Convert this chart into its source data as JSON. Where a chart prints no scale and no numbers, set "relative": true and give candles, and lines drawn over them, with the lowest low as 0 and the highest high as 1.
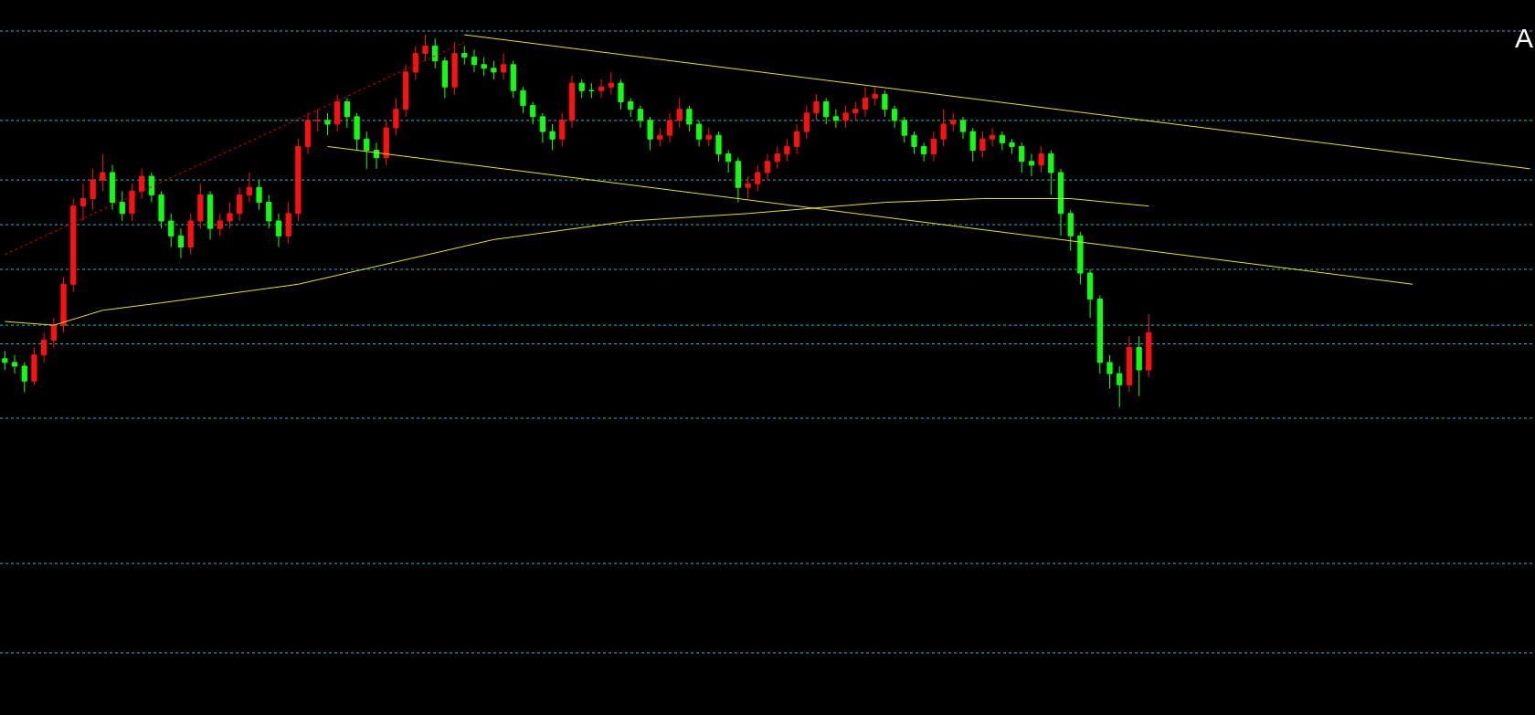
{
  "chart_data": {
    "type": "candlestick",
    "relative": true,
    "annotations": [
      "A"
    ],
    "categories": [
      null,
      null,
      null,
      null,
      null,
      null,
      null,
      null,
      null,
      null,
      null,
      null,
      null,
      null,
      null,
      null,
      null,
      null,
      null,
      null,
      null,
      null,
      null,
      null,
      null,
      null,
      null,
      null,
      null,
      null,
      null,
      null,
      null,
      null,
      null,
      null,
      null,
      null,
      null,
      null,
      null,
      null,
      null,
      null,
      null,
      null,
      null,
      null,
      null,
      null,
      null,
      null,
      null,
      null,
      null,
      null,
      null,
      null,
      null,
      null,
      null,
      null,
      null,
      null,
      null,
      null,
      null,
      null,
      null,
      null,
      null,
      null,
      null,
      null,
      null,
      null,
      null,
      null,
      null,
      null,
      null,
      null,
      null,
      null,
      null,
      null,
      null,
      null,
      null,
      null,
      null,
      null,
      null,
      null,
      null,
      null,
      null,
      null,
      null,
      null,
      null,
      null,
      null,
      null,
      null,
      null,
      null,
      null,
      null,
      null,
      null,
      null,
      null,
      null,
      null,
      null,
      null,
      null,
      null,
      null,
      null,
      null,
      null,
      null,
      null,
      null,
      null,
      null,
      null,
      null,
      null,
      null,
      null,
      null,
      null,
      null,
      null,
      null,
      null,
      null,
      null,
      null,
      null,
      null,
      null,
      null,
      null,
      null,
      null,
      null,
      null,
      null,
      null,
      null,
      null,
      null,
      null
    ],
    "ohlc": [
      [
        0.13,
        0.15,
        0.1,
        0.12
      ],
      [
        0.12,
        0.14,
        0.09,
        0.11
      ],
      [
        0.11,
        0.12,
        0.04,
        0.07
      ],
      [
        0.07,
        0.16,
        0.06,
        0.14
      ],
      [
        0.14,
        0.2,
        0.12,
        0.18
      ],
      [
        0.18,
        0.24,
        0.16,
        0.22
      ],
      [
        0.22,
        0.35,
        0.2,
        0.33
      ],
      [
        0.33,
        0.56,
        0.31,
        0.54
      ],
      [
        0.54,
        0.6,
        0.5,
        0.56
      ],
      [
        0.56,
        0.64,
        0.53,
        0.61
      ],
      [
        0.61,
        0.68,
        0.58,
        0.63
      ],
      [
        0.63,
        0.65,
        0.53,
        0.55
      ],
      [
        0.55,
        0.58,
        0.5,
        0.52
      ],
      [
        0.52,
        0.6,
        0.5,
        0.58
      ],
      [
        0.58,
        0.64,
        0.56,
        0.62
      ],
      [
        0.62,
        0.63,
        0.55,
        0.57
      ],
      [
        0.57,
        0.58,
        0.48,
        0.5
      ],
      [
        0.5,
        0.52,
        0.43,
        0.46
      ],
      [
        0.46,
        0.48,
        0.4,
        0.43
      ],
      [
        0.43,
        0.52,
        0.41,
        0.5
      ],
      [
        0.5,
        0.6,
        0.48,
        0.57
      ],
      [
        0.57,
        0.58,
        0.45,
        0.48
      ],
      [
        0.48,
        0.52,
        0.46,
        0.5
      ],
      [
        0.5,
        0.55,
        0.48,
        0.52
      ],
      [
        0.52,
        0.59,
        0.5,
        0.57
      ],
      [
        0.57,
        0.63,
        0.55,
        0.59
      ],
      [
        0.59,
        0.61,
        0.53,
        0.55
      ],
      [
        0.55,
        0.57,
        0.48,
        0.5
      ],
      [
        0.5,
        0.52,
        0.43,
        0.46
      ],
      [
        0.46,
        0.55,
        0.44,
        0.52
      ],
      [
        0.52,
        0.72,
        0.5,
        0.7
      ],
      [
        0.7,
        0.79,
        0.68,
        0.77
      ],
      [
        0.77,
        0.8,
        0.74,
        0.77
      ],
      [
        0.77,
        0.79,
        0.73,
        0.76
      ],
      [
        0.76,
        0.84,
        0.74,
        0.82
      ],
      [
        0.82,
        0.83,
        0.75,
        0.78
      ],
      [
        0.78,
        0.79,
        0.69,
        0.72
      ],
      [
        0.72,
        0.74,
        0.64,
        0.69
      ],
      [
        0.69,
        0.71,
        0.64,
        0.67
      ],
      [
        0.67,
        0.77,
        0.65,
        0.75
      ],
      [
        0.75,
        0.83,
        0.73,
        0.8
      ],
      [
        0.8,
        0.92,
        0.78,
        0.9
      ],
      [
        0.9,
        0.97,
        0.88,
        0.95
      ],
      [
        0.95,
        1.0,
        0.93,
        0.97
      ],
      [
        0.97,
        0.99,
        0.91,
        0.93
      ],
      [
        0.93,
        0.94,
        0.83,
        0.86
      ],
      [
        0.86,
        0.98,
        0.84,
        0.95
      ],
      [
        0.95,
        0.97,
        0.92,
        0.94
      ],
      [
        0.94,
        0.96,
        0.9,
        0.92
      ],
      [
        0.92,
        0.94,
        0.89,
        0.91
      ],
      [
        0.91,
        0.93,
        0.88,
        0.9
      ],
      [
        0.9,
        0.95,
        0.88,
        0.92
      ],
      [
        0.92,
        0.93,
        0.83,
        0.85
      ],
      [
        0.85,
        0.86,
        0.79,
        0.81
      ],
      [
        0.81,
        0.82,
        0.76,
        0.78
      ],
      [
        0.78,
        0.79,
        0.71,
        0.74
      ],
      [
        0.74,
        0.76,
        0.69,
        0.72
      ],
      [
        0.72,
        0.79,
        0.7,
        0.77
      ],
      [
        0.77,
        0.89,
        0.75,
        0.87
      ],
      [
        0.87,
        0.88,
        0.83,
        0.85
      ],
      [
        0.85,
        0.87,
        0.83,
        0.85
      ],
      [
        0.85,
        0.88,
        0.83,
        0.86
      ],
      [
        0.86,
        0.9,
        0.84,
        0.87
      ],
      [
        0.87,
        0.88,
        0.8,
        0.82
      ],
      [
        0.82,
        0.83,
        0.78,
        0.8
      ],
      [
        0.8,
        0.81,
        0.75,
        0.77
      ],
      [
        0.77,
        0.78,
        0.69,
        0.72
      ],
      [
        0.72,
        0.75,
        0.7,
        0.73
      ],
      [
        0.73,
        0.79,
        0.71,
        0.77
      ],
      [
        0.77,
        0.83,
        0.75,
        0.8
      ],
      [
        0.8,
        0.81,
        0.74,
        0.76
      ],
      [
        0.76,
        0.77,
        0.7,
        0.72
      ],
      [
        0.72,
        0.75,
        0.7,
        0.73
      ],
      [
        0.73,
        0.74,
        0.66,
        0.68
      ],
      [
        0.68,
        0.69,
        0.63,
        0.66
      ],
      [
        0.66,
        0.67,
        0.55,
        0.59
      ],
      [
        0.59,
        0.62,
        0.56,
        0.6
      ],
      [
        0.6,
        0.65,
        0.58,
        0.63
      ],
      [
        0.63,
        0.68,
        0.61,
        0.66
      ],
      [
        0.66,
        0.7,
        0.64,
        0.68
      ],
      [
        0.68,
        0.72,
        0.66,
        0.7
      ],
      [
        0.7,
        0.76,
        0.68,
        0.74
      ],
      [
        0.74,
        0.81,
        0.72,
        0.79
      ],
      [
        0.79,
        0.84,
        0.77,
        0.82
      ],
      [
        0.82,
        0.83,
        0.76,
        0.78
      ],
      [
        0.78,
        0.8,
        0.75,
        0.77
      ],
      [
        0.77,
        0.81,
        0.75,
        0.79
      ],
      [
        0.79,
        0.82,
        0.77,
        0.8
      ],
      [
        0.8,
        0.86,
        0.78,
        0.83
      ],
      [
        0.83,
        0.86,
        0.81,
        0.84
      ],
      [
        0.84,
        0.85,
        0.78,
        0.8
      ],
      [
        0.8,
        0.81,
        0.75,
        0.77
      ],
      [
        0.77,
        0.78,
        0.71,
        0.73
      ],
      [
        0.73,
        0.74,
        0.68,
        0.7
      ],
      [
        0.7,
        0.71,
        0.66,
        0.68
      ],
      [
        0.68,
        0.74,
        0.66,
        0.72
      ],
      [
        0.72,
        0.8,
        0.7,
        0.76
      ],
      [
        0.76,
        0.79,
        0.74,
        0.77
      ],
      [
        0.77,
        0.78,
        0.72,
        0.74
      ],
      [
        0.74,
        0.75,
        0.66,
        0.69
      ],
      [
        0.69,
        0.74,
        0.67,
        0.72
      ],
      [
        0.72,
        0.75,
        0.7,
        0.73
      ],
      [
        0.73,
        0.74,
        0.69,
        0.71
      ],
      [
        0.71,
        0.72,
        0.68,
        0.7
      ],
      [
        0.7,
        0.71,
        0.63,
        0.66
      ],
      [
        0.66,
        0.68,
        0.62,
        0.65
      ],
      [
        0.65,
        0.7,
        0.63,
        0.68
      ],
      [
        0.68,
        0.69,
        0.57,
        0.63
      ],
      [
        0.63,
        0.64,
        0.46,
        0.52
      ],
      [
        0.52,
        0.53,
        0.42,
        0.46
      ],
      [
        0.46,
        0.47,
        0.33,
        0.36
      ],
      [
        0.36,
        0.37,
        0.24,
        0.29
      ],
      [
        0.29,
        0.3,
        0.09,
        0.12
      ],
      [
        0.12,
        0.14,
        0.05,
        0.09
      ],
      [
        0.09,
        0.11,
        0.0,
        0.06
      ],
      [
        0.06,
        0.19,
        0.04,
        0.16
      ],
      [
        0.16,
        0.19,
        0.03,
        0.1
      ],
      [
        0.1,
        0.25,
        0.08,
        0.2
      ],
      null,
      null,
      null,
      null,
      null,
      null,
      null,
      null,
      null,
      null,
      null,
      null,
      null,
      null,
      null,
      null,
      null,
      null,
      null,
      null,
      null,
      null,
      null,
      null,
      null,
      null,
      null,
      null,
      null,
      null,
      null,
      null,
      null,
      null,
      null,
      null,
      null,
      null,
      null
    ],
    "series": [
      {
        "type": "line",
        "color": "#e6e600",
        "line_style": "solid",
        "values": [
          0.23,
          null,
          null,
          null,
          null,
          0.22,
          null,
          null,
          null,
          null,
          0.26,
          null,
          null,
          null,
          null,
          null,
          0.28,
          null,
          null,
          null,
          null,
          null,
          null,
          null,
          null,
          null,
          null,
          null,
          null,
          null,
          0.33,
          null,
          null,
          null,
          null,
          null,
          null,
          null,
          null,
          null,
          0.39,
          null,
          null,
          null,
          null,
          null,
          null,
          null,
          null,
          null,
          0.45,
          null,
          null,
          null,
          null,
          null,
          null,
          null,
          null,
          null,
          null,
          null,
          null,
          null,
          0.5,
          null,
          null,
          null,
          null,
          null,
          null,
          null,
          null,
          null,
          null,
          null,
          0.52,
          null,
          null,
          null,
          null,
          null,
          null,
          null,
          null,
          null,
          null,
          null,
          null,
          null,
          0.55,
          null,
          null,
          null,
          null,
          null,
          null,
          null,
          null,
          null,
          0.56,
          null,
          null,
          null,
          null,
          null,
          null,
          null,
          null,
          0.56,
          null,
          null,
          null,
          null,
          null,
          null,
          null,
          0.54,
          null,
          null,
          null,
          null,
          null,
          null,
          null,
          null,
          null,
          null,
          null,
          null,
          null,
          null,
          null,
          null,
          null,
          null,
          null,
          null,
          null,
          null,
          null,
          null,
          null,
          null,
          null,
          null,
          null,
          null,
          null,
          null,
          null,
          null,
          null,
          null,
          null,
          null,
          null
        ]
      },
      {
        "type": "line",
        "color": "#e6e600",
        "line_style": "solid",
        "values": [
          null,
          null,
          null,
          null,
          null,
          null,
          null,
          null,
          null,
          null,
          null,
          null,
          null,
          null,
          null,
          null,
          null,
          null,
          null,
          null,
          null,
          null,
          null,
          null,
          null,
          null,
          null,
          null,
          null,
          null,
          null,
          null,
          null,
          null,
          null,
          null,
          null,
          null,
          null,
          null,
          null,
          null,
          null,
          null,
          null,
          null,
          null,
          1.0,
          null,
          null,
          null,
          null,
          null,
          null,
          null,
          null,
          null,
          null,
          null,
          null,
          null,
          null,
          null,
          null,
          null,
          null,
          null,
          null,
          null,
          null,
          null,
          null,
          null,
          null,
          null,
          null,
          null,
          null,
          null,
          null,
          null,
          null,
          null,
          null,
          null,
          null,
          null,
          null,
          null,
          null,
          null,
          null,
          null,
          null,
          null,
          null,
          null,
          null,
          null,
          null,
          null,
          null,
          null,
          null,
          null,
          null,
          null,
          null,
          null,
          null,
          null,
          null,
          null,
          null,
          null,
          null,
          null,
          null,
          null,
          null,
          null,
          null,
          null,
          null,
          null,
          null,
          null,
          null,
          null,
          null,
          null,
          null,
          null,
          null,
          null,
          null,
          null,
          null,
          null,
          null,
          null,
          null,
          null,
          null,
          null,
          null,
          null,
          null,
          null,
          null,
          null,
          null,
          null,
          null,
          null,
          null,
          0.64
        ]
      },
      {
        "type": "line",
        "color": "#e6e600",
        "line_style": "solid",
        "values": [
          null,
          null,
          null,
          null,
          null,
          null,
          null,
          null,
          null,
          null,
          null,
          null,
          null,
          null,
          null,
          null,
          null,
          null,
          null,
          null,
          null,
          null,
          null,
          null,
          null,
          null,
          null,
          null,
          null,
          null,
          null,
          null,
          null,
          0.7,
          null,
          null,
          null,
          null,
          null,
          null,
          null,
          null,
          null,
          null,
          null,
          null,
          null,
          null,
          null,
          null,
          null,
          null,
          null,
          null,
          null,
          null,
          null,
          null,
          null,
          null,
          null,
          null,
          null,
          null,
          null,
          null,
          null,
          null,
          null,
          null,
          null,
          null,
          null,
          null,
          null,
          null,
          null,
          null,
          null,
          null,
          null,
          null,
          null,
          null,
          null,
          null,
          null,
          null,
          null,
          null,
          null,
          null,
          null,
          null,
          null,
          null,
          null,
          null,
          null,
          null,
          null,
          null,
          null,
          null,
          null,
          null,
          null,
          null,
          null,
          null,
          null,
          null,
          null,
          null,
          null,
          null,
          null,
          null,
          null,
          null,
          null,
          null,
          null,
          null,
          null,
          null,
          null,
          null,
          null,
          null,
          null,
          null,
          null,
          null,
          null,
          null,
          null,
          null,
          null,
          null,
          null,
          null,
          null,
          null,
          0.33,
          null,
          null,
          null,
          null,
          null,
          null,
          null,
          null,
          null,
          null,
          null,
          null
        ]
      },
      {
        "type": "line",
        "color": "#e00000",
        "line_style": "dotted",
        "values": [
          0.41,
          null,
          null,
          null,
          null,
          null,
          null,
          null,
          null,
          null,
          null,
          null,
          null,
          null,
          null,
          null,
          null,
          null,
          null,
          null,
          null,
          null,
          null,
          null,
          null,
          null,
          null,
          null,
          null,
          null,
          null,
          null,
          null,
          null,
          null,
          null,
          null,
          null,
          null,
          null,
          null,
          null,
          null,
          null,
          null,
          null,
          null,
          0.98,
          null,
          null,
          null,
          null,
          null,
          null,
          null,
          null,
          null,
          null,
          null,
          null,
          null,
          null,
          null,
          null,
          null,
          null,
          null,
          null,
          null,
          null,
          null,
          null,
          null,
          null,
          null,
          null,
          null,
          null,
          null,
          null,
          null,
          null,
          null,
          null,
          null,
          null,
          null,
          null,
          null,
          null,
          null,
          null,
          null,
          null,
          null,
          null,
          null,
          null,
          null,
          null,
          null,
          null,
          null,
          null,
          null,
          null,
          null,
          null,
          null,
          null,
          null,
          null,
          null,
          null,
          null,
          null,
          null,
          null,
          null,
          null,
          null,
          null,
          null,
          null,
          null,
          null,
          null,
          null,
          null,
          null,
          null,
          null,
          null,
          null,
          null,
          null,
          null,
          null,
          null,
          null,
          null,
          null,
          null,
          null,
          null,
          null,
          null,
          null,
          null,
          null,
          null,
          null,
          null,
          null,
          null,
          null,
          null
        ]
      }
    ],
    "ref_lines": [
      {
        "axis": "y",
        "value": 1.01,
        "color": "#20b8c8",
        "line_style": "dotted"
      },
      {
        "axis": "y",
        "value": 0.77,
        "color": "#20b8c8",
        "line_style": "dotted"
      },
      {
        "axis": "y",
        "value": 0.61,
        "color": "#20b8c8",
        "line_style": "dotted"
      },
      {
        "axis": "y",
        "value": 0.49,
        "color": "#20b8c8",
        "line_style": "dotted"
      },
      {
        "axis": "y",
        "value": 0.37,
        "color": "#20b8c8",
        "line_style": "dotted"
      },
      {
        "axis": "y",
        "value": 0.22,
        "color": "#20b8c8",
        "line_style": "dotted"
      },
      {
        "axis": "y",
        "value": 0.17,
        "color": "#20b8c8",
        "line_style": "dotted"
      },
      {
        "axis": "y",
        "value": -0.03,
        "color": "#20b8c8",
        "line_style": "dotted"
      },
      {
        "axis": "y",
        "value": -0.42,
        "color": "#20b8c8",
        "line_style": "dotted"
      },
      {
        "axis": "y",
        "value": -0.66,
        "color": "#20b8c8",
        "line_style": "dotted"
      }
    ]
  }
}
